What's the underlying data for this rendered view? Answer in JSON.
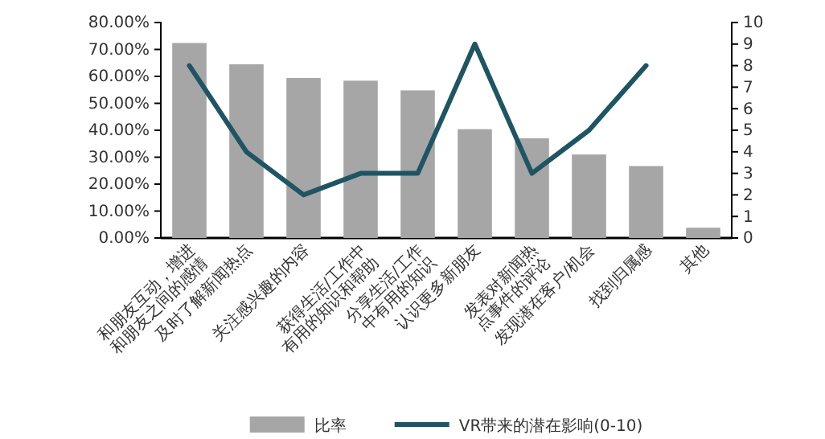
{
  "chart_data": {
    "type": "bar",
    "categories": [
      "和朋友互动，增进和朋友之间的感情",
      "及时了解新闻热点",
      "关注感兴趣的内容",
      "获得生活/工作中有用的知识和帮助",
      "分享生活/工作中有用的知识",
      "认识更多新朋友",
      "发表对新闻热点事件的评论",
      "发现潜在客户/机会",
      "找到归属感",
      "其他"
    ],
    "series": [
      {
        "name": "比率",
        "color": "#a6a6a6",
        "values": [
          72.4,
          64.5,
          59.4,
          58.4,
          54.8,
          40.4,
          37.0,
          31.0,
          26.7,
          3.8
        ]
      },
      {
        "name": "VR带来的潜在影响(0-10)",
        "type": "line",
        "axis": "y2",
        "color": "#1f5563",
        "values": [
          8,
          4,
          2,
          3,
          3,
          9,
          3,
          5,
          8,
          null
        ]
      }
    ],
    "ylim": [
      0,
      80
    ],
    "yticks": [
      {
        "value": 0,
        "label": "0.00%"
      },
      {
        "value": 10,
        "label": "10.00%"
      },
      {
        "value": 20,
        "label": "20.00%"
      },
      {
        "value": 30,
        "label": "30.00%"
      },
      {
        "value": 40,
        "label": "40.00%"
      },
      {
        "value": 50,
        "label": "50.00%"
      },
      {
        "value": 60,
        "label": "60.00%"
      },
      {
        "value": 70,
        "label": "70.00%"
      },
      {
        "value": 80,
        "label": "80.00%"
      }
    ],
    "y2lim": [
      0,
      10
    ],
    "y2ticks": [
      0,
      1,
      2,
      3,
      4,
      5,
      6,
      7,
      8,
      9,
      10
    ],
    "legend": "bottom",
    "grid": false,
    "marker": "none",
    "line_style": "solid"
  }
}
